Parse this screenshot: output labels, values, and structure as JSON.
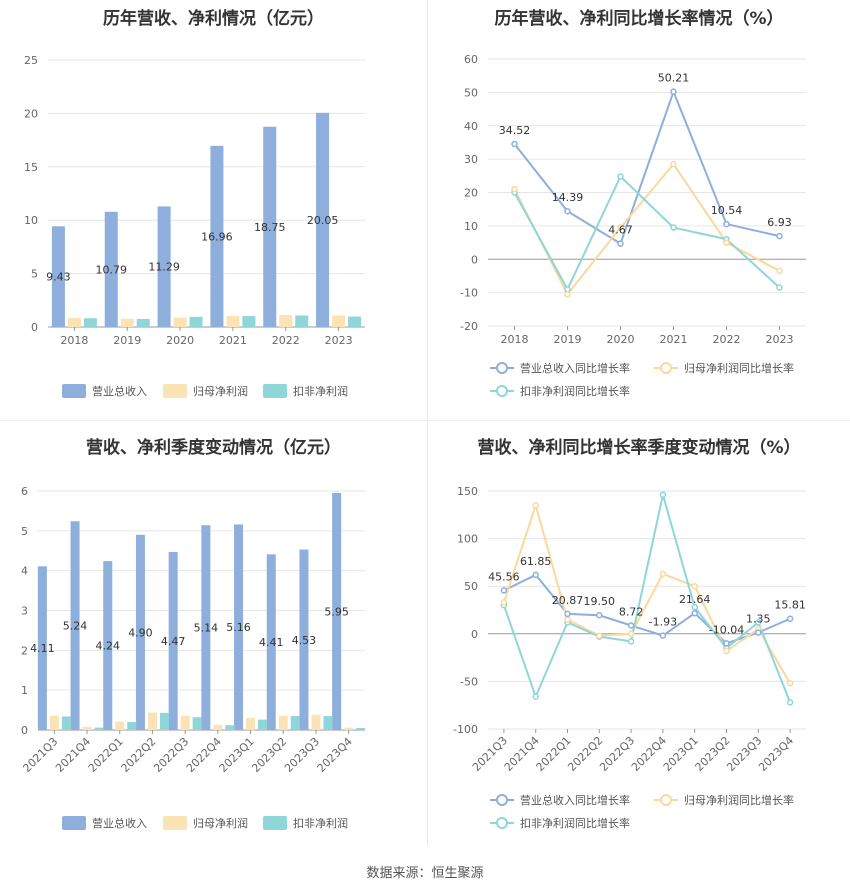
{
  "footer_text": "数据来源：恒生聚源",
  "colors": {
    "revenue": "#8eaedb",
    "net_profit": "#fbe3b5",
    "deducted_profit": "#8fd6d9",
    "revenue_line": "#8eaedb",
    "net_profit_line": "#fcd79e",
    "deducted_line": "#8fd6d9"
  },
  "chart_data": [
    {
      "type": "bar",
      "title": "历年营收、净利情况（亿元）",
      "categories": [
        "2018",
        "2019",
        "2020",
        "2021",
        "2022",
        "2023"
      ],
      "ylim": [
        0,
        25
      ],
      "yticks": [
        "0",
        "5",
        "10",
        "15",
        "20",
        "25"
      ],
      "legend_position": "bottom",
      "series": [
        {
          "name": "营业总收入",
          "values": [
            9.43,
            10.79,
            11.29,
            16.96,
            18.75,
            20.05
          ],
          "labels": [
            "9.43",
            "10.79",
            "11.29",
            "16.96",
            "18.75",
            "20.05"
          ]
        },
        {
          "name": "归母净利润",
          "values": [
            0.85,
            0.78,
            0.88,
            1.05,
            1.12,
            1.08
          ]
        },
        {
          "name": "扣非净利润",
          "values": [
            0.82,
            0.75,
            0.95,
            1.02,
            1.08,
            0.98
          ]
        }
      ]
    },
    {
      "type": "line",
      "title": "历年营收、净利同比增长率情况（%）",
      "categories": [
        "2018",
        "2019",
        "2020",
        "2021",
        "2022",
        "2023"
      ],
      "ylim": [
        -20,
        60
      ],
      "yticks": [
        "-20",
        "-10",
        "0",
        "10",
        "20",
        "30",
        "40",
        "50",
        "60"
      ],
      "legend_position": "bottom",
      "series": [
        {
          "name": "营业总收入同比增长率",
          "values": [
            34.52,
            14.39,
            4.67,
            50.21,
            10.54,
            6.93
          ],
          "labels": [
            "34.52",
            "14.39",
            "4.67",
            "50.21",
            "10.54",
            "6.93"
          ]
        },
        {
          "name": "归母净利润同比增长率",
          "values": [
            21.0,
            -10.5,
            9.5,
            28.5,
            5.0,
            -3.5
          ]
        },
        {
          "name": "扣非净利润同比增长率",
          "values": [
            20.0,
            -9.0,
            24.8,
            9.5,
            6.0,
            -8.5
          ]
        }
      ]
    },
    {
      "type": "bar",
      "title": "营收、净利季度变动情况（亿元）",
      "categories": [
        "2021Q3",
        "2021Q4",
        "2022Q1",
        "2022Q2",
        "2022Q3",
        "2022Q4",
        "2023Q1",
        "2023Q2",
        "2023Q3",
        "2023Q4"
      ],
      "ylim": [
        0,
        6
      ],
      "yticks": [
        "0",
        "1",
        "2",
        "3",
        "4",
        "5",
        "6"
      ],
      "legend_position": "bottom",
      "series": [
        {
          "name": "营业总收入",
          "values": [
            4.11,
            5.24,
            4.24,
            4.9,
            4.47,
            5.14,
            5.16,
            4.41,
            4.53,
            5.95
          ],
          "labels": [
            "4.11",
            "5.24",
            "4.24",
            "4.90",
            "4.47",
            "5.14",
            "5.16",
            "4.41",
            "4.53",
            "5.95"
          ]
        },
        {
          "name": "归母净利润",
          "values": [
            0.36,
            0.08,
            0.21,
            0.44,
            0.36,
            0.13,
            0.3,
            0.36,
            0.38,
            0.06
          ]
        },
        {
          "name": "扣非净利润",
          "values": [
            0.34,
            0.06,
            0.2,
            0.43,
            0.32,
            0.12,
            0.26,
            0.35,
            0.35,
            0.05
          ]
        }
      ]
    },
    {
      "type": "line",
      "title": "营收、净利同比增长率季度变动情况（%）",
      "categories": [
        "2021Q3",
        "2021Q4",
        "2022Q1",
        "2022Q2",
        "2022Q3",
        "2022Q4",
        "2023Q1",
        "2023Q2",
        "2023Q3",
        "2023Q4"
      ],
      "ylim": [
        -100,
        150
      ],
      "yticks": [
        "-100",
        "-50",
        "0",
        "50",
        "100",
        "150"
      ],
      "legend_position": "bottom",
      "series": [
        {
          "name": "营业总收入同比增长率",
          "values": [
            45.56,
            61.85,
            20.87,
            19.5,
            8.72,
            -1.93,
            21.64,
            -10.04,
            1.35,
            15.81
          ],
          "labels": [
            "45.56",
            "61.85",
            "20.87",
            "19.50",
            "8.72",
            "-1.93",
            "21.64",
            "-10.04",
            "1.35",
            "15.81"
          ]
        },
        {
          "name": "归母净利润同比增长率",
          "values": [
            33,
            135,
            15,
            -2,
            0,
            63,
            50,
            -18,
            5,
            -52
          ]
        },
        {
          "name": "扣非净利润同比增长率",
          "values": [
            30,
            -66,
            12,
            -3,
            -8,
            146,
            28,
            -15,
            12,
            -72
          ]
        }
      ]
    }
  ]
}
